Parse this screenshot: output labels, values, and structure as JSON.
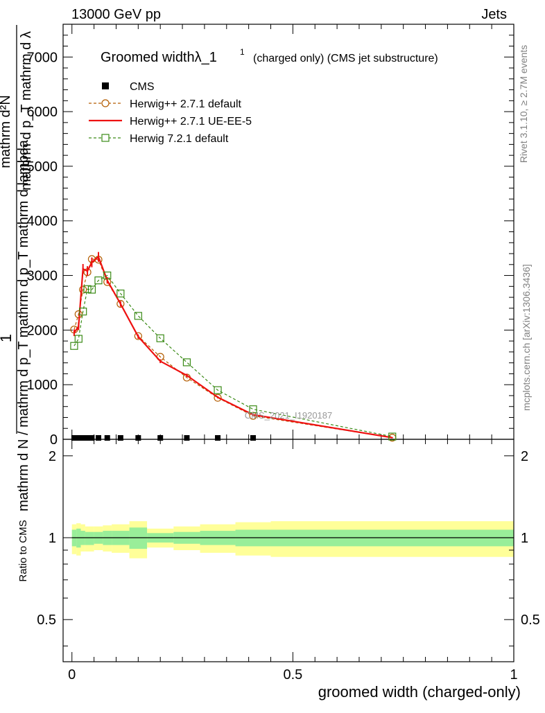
{
  "header": {
    "left": "13000 GeV pp",
    "right": "Jets"
  },
  "side_texts": {
    "rivet": "Rivet 3.1.10, ≥ 2.7M events",
    "mcplots": "mcplots.cern.ch [arXiv:1306.3436]"
  },
  "watermark": "CMS_2021_I1920187",
  "chart_data": [
    {
      "type": "line",
      "title_main": "Groomed widthλ_1",
      "title_sup": "1",
      "title_rest": "(charged only) (CMS jet substructure)",
      "ylabel_top": "1",
      "ylabel_bottom": "mathrm d N / mathrm d p_T mathrm d p_T mathrm d lambda",
      "ylabel_num": "mathrm d²N",
      "ylabel_den": "mathrm d p_T mathrm d λ",
      "xlim": [
        -0.02,
        1.0
      ],
      "ylim": [
        0,
        7600
      ],
      "yticks": [
        0,
        1000,
        2000,
        3000,
        4000,
        5000,
        6000,
        7000
      ],
      "ytick_labels": [
        "0",
        "1000",
        "2000",
        "3000",
        "4000",
        "5000",
        "6000",
        "7000"
      ],
      "legend": {
        "position": "top-left",
        "entries": [
          "CMS",
          "Herwig++ 2.7.1 default",
          "Herwig++ 2.7.1 UE-EE-5",
          "Herwig 7.2.1 default"
        ]
      },
      "series": [
        {
          "name": "CMS",
          "color": "#000000",
          "marker": "square-filled",
          "x": [
            0.005,
            0.015,
            0.025,
            0.035,
            0.045,
            0.06,
            0.08,
            0.11,
            0.15,
            0.2,
            0.26,
            0.33,
            0.41
          ],
          "y": [
            0,
            0,
            0,
            0,
            0,
            0,
            0,
            0,
            0,
            0,
            0,
            0,
            0
          ]
        },
        {
          "name": "Herwig++ 2.7.1 default",
          "color": "#b35c00",
          "marker": "circle-open",
          "dash": "4,3",
          "x": [
            0.005,
            0.015,
            0.025,
            0.035,
            0.045,
            0.06,
            0.08,
            0.11,
            0.15,
            0.2,
            0.26,
            0.33,
            0.41,
            0.725
          ],
          "y": [
            2010,
            2290,
            2740,
            3060,
            3300,
            3290,
            2880,
            2480,
            1890,
            1510,
            1130,
            760,
            430,
            30
          ]
        },
        {
          "name": "Herwig++ 2.7.1 UE-EE-5",
          "color": "#ee1111",
          "marker": "none",
          "x": [
            0.005,
            0.015,
            0.025,
            0.035,
            0.045,
            0.06,
            0.08,
            0.11,
            0.15,
            0.2,
            0.26,
            0.33,
            0.41,
            0.725
          ],
          "y": [
            1950,
            2070,
            3120,
            3080,
            3240,
            3340,
            2910,
            2480,
            1880,
            1430,
            1170,
            770,
            450,
            30
          ],
          "yerr": [
            60,
            70,
            90,
            90,
            90,
            90,
            60,
            50,
            40,
            35,
            30,
            20,
            20,
            10
          ]
        },
        {
          "name": "Herwig 7.2.1 default",
          "color": "#3a8a16",
          "marker": "square-open",
          "dash": "4,3",
          "x": [
            0.005,
            0.015,
            0.025,
            0.035,
            0.045,
            0.06,
            0.08,
            0.11,
            0.15,
            0.2,
            0.26,
            0.33,
            0.41,
            0.725
          ],
          "y": [
            1710,
            1840,
            2340,
            2750,
            2740,
            2910,
            3000,
            2670,
            2260,
            1850,
            1410,
            900,
            550,
            50
          ]
        }
      ]
    },
    {
      "type": "area",
      "ylabel": "Ratio to CMS",
      "xlabel": "groomed width (charged-only)",
      "xlim": [
        -0.02,
        1.0
      ],
      "ylim": [
        0.35,
        2.3
      ],
      "yticks": [
        0.5,
        1,
        2
      ],
      "ytick_labels": [
        "0.5",
        "1",
        "2"
      ],
      "xticks": [
        0,
        0.5,
        1
      ],
      "xtick_labels": [
        "0",
        "0.5",
        "1"
      ],
      "reference_line": 1,
      "bins": [
        {
          "x0": 0.0,
          "x1": 0.01,
          "inner": [
            0.93,
            1.07
          ],
          "outer": [
            0.87,
            1.12
          ]
        },
        {
          "x0": 0.01,
          "x1": 0.02,
          "inner": [
            0.92,
            1.08
          ],
          "outer": [
            0.86,
            1.13
          ]
        },
        {
          "x0": 0.02,
          "x1": 0.03,
          "inner": [
            0.94,
            1.06
          ],
          "outer": [
            0.89,
            1.12
          ]
        },
        {
          "x0": 0.03,
          "x1": 0.05,
          "inner": [
            0.94,
            1.05
          ],
          "outer": [
            0.89,
            1.1
          ]
        },
        {
          "x0": 0.05,
          "x1": 0.07,
          "inner": [
            0.95,
            1.05
          ],
          "outer": [
            0.9,
            1.1
          ]
        },
        {
          "x0": 0.07,
          "x1": 0.09,
          "inner": [
            0.94,
            1.06
          ],
          "outer": [
            0.89,
            1.11
          ]
        },
        {
          "x0": 0.09,
          "x1": 0.13,
          "inner": [
            0.94,
            1.06
          ],
          "outer": [
            0.88,
            1.12
          ]
        },
        {
          "x0": 0.13,
          "x1": 0.17,
          "inner": [
            0.91,
            1.09
          ],
          "outer": [
            0.84,
            1.15
          ]
        },
        {
          "x0": 0.17,
          "x1": 0.23,
          "inner": [
            0.96,
            1.04
          ],
          "outer": [
            0.92,
            1.08
          ]
        },
        {
          "x0": 0.23,
          "x1": 0.29,
          "inner": [
            0.95,
            1.05
          ],
          "outer": [
            0.9,
            1.1
          ]
        },
        {
          "x0": 0.29,
          "x1": 0.37,
          "inner": [
            0.94,
            1.06
          ],
          "outer": [
            0.88,
            1.12
          ]
        },
        {
          "x0": 0.37,
          "x1": 0.45,
          "inner": [
            0.93,
            1.07
          ],
          "outer": [
            0.86,
            1.14
          ]
        },
        {
          "x0": 0.45,
          "x1": 1.0,
          "inner": [
            0.93,
            1.07
          ],
          "outer": [
            0.85,
            1.15
          ]
        }
      ]
    }
  ]
}
